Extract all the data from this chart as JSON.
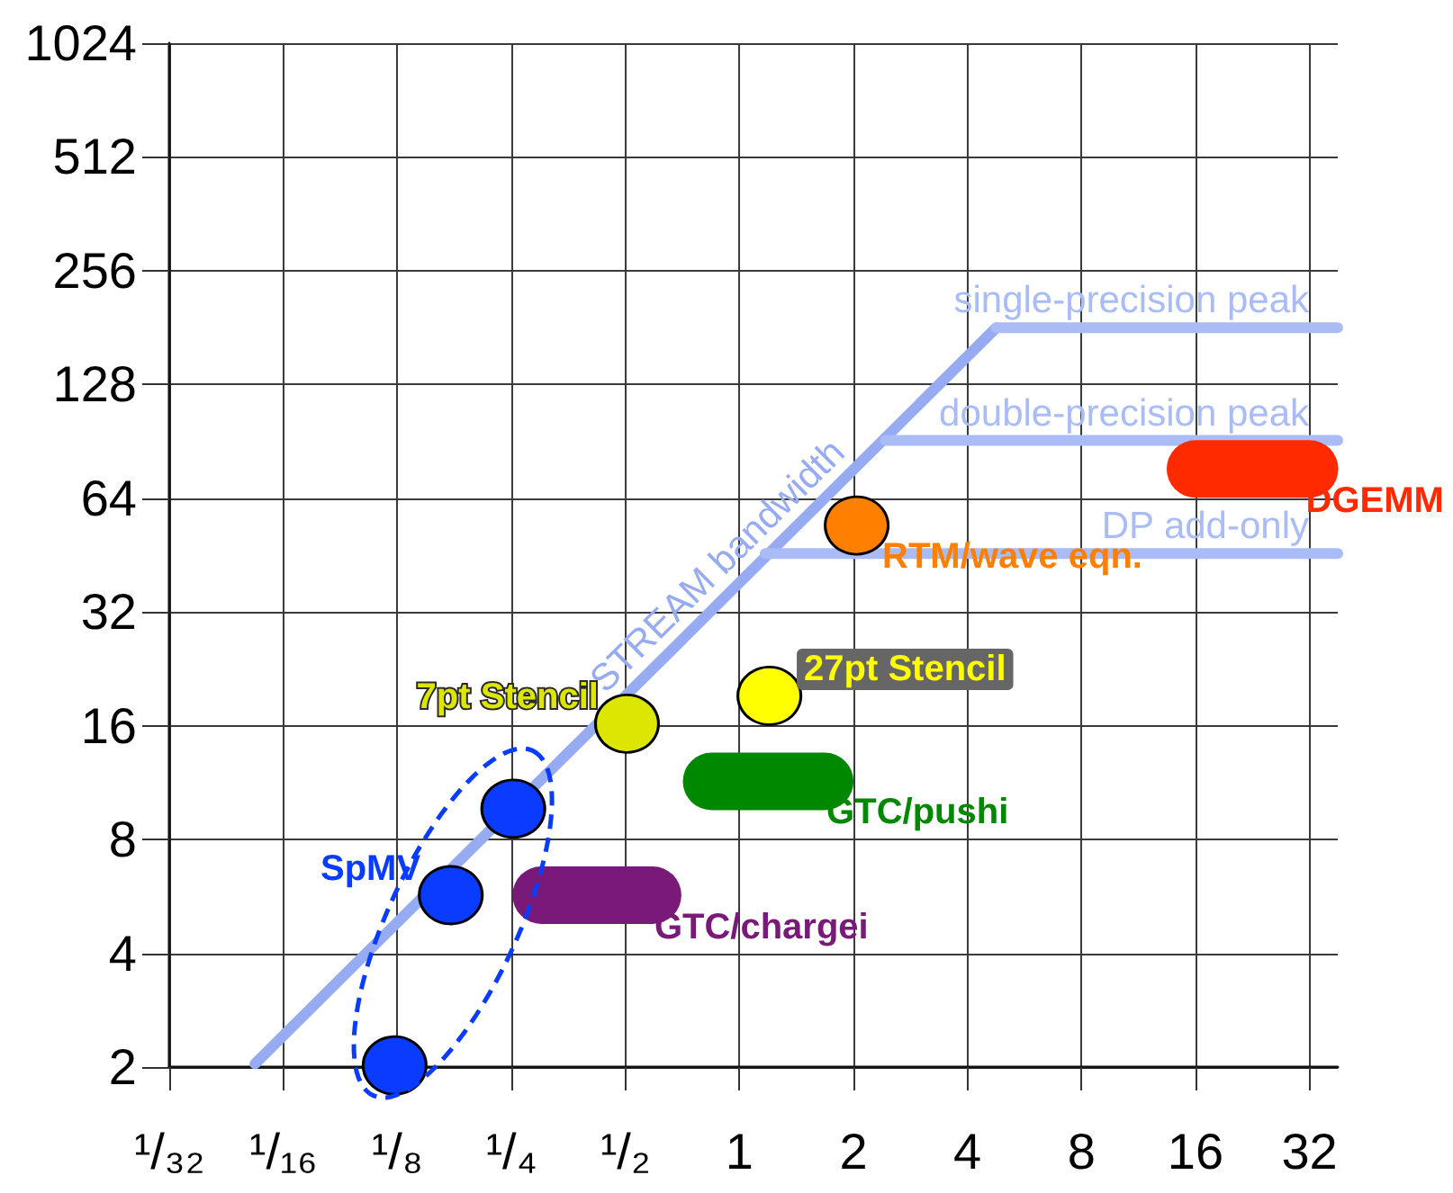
{
  "chart_data": {
    "type": "scatter",
    "log": "xy",
    "grid": true,
    "legend": false,
    "marker": "circle",
    "xlim": [
      0.03125,
      38
    ],
    "ylim": [
      2,
      1024
    ],
    "xticks": [
      {
        "value": 0.03125,
        "label": "¹/₃₂"
      },
      {
        "value": 0.0625,
        "label": "¹/₁₆"
      },
      {
        "value": 0.125,
        "label": "¹/₈"
      },
      {
        "value": 0.25,
        "label": "¹/₄"
      },
      {
        "value": 0.5,
        "label": "¹/₂"
      },
      1,
      2,
      4,
      8,
      16,
      32
    ],
    "yticks": [
      2,
      4,
      8,
      16,
      32,
      64,
      128,
      256,
      512,
      1024
    ],
    "series": [
      {
        "name": "STREAM bandwidth",
        "type": "line",
        "marker": "none",
        "color": "#97abf2",
        "x": [
          0.0526,
          4.77
        ],
        "values": [
          2.04,
          181
        ]
      },
      {
        "name": "single-precision peak",
        "type": "line",
        "marker": "none",
        "color": "#a9bcf5",
        "x": [
          4.77,
          38
        ],
        "values": [
          181,
          181
        ]
      },
      {
        "name": "double-precision peak",
        "type": "line",
        "marker": "none",
        "color": "#a9bcf5",
        "x": [
          2.43,
          38
        ],
        "values": [
          91,
          91
        ]
      },
      {
        "name": "DP add-only",
        "type": "line",
        "marker": "none",
        "color": "#a9bcf5",
        "x": [
          1.17,
          38
        ],
        "values": [
          45.7,
          45.7
        ]
      },
      {
        "name": "SpMV",
        "color": "#0a3cff",
        "x": [
          0.123,
          0.173,
          0.253
        ],
        "values": [
          2.02,
          5.7,
          9.65
        ]
      },
      {
        "name": "7pt Stencil",
        "color": "#dce600",
        "x": [
          0.505
        ],
        "values": [
          16.2
        ]
      },
      {
        "name": "27pt Stencil",
        "color": "#ffff00",
        "x": [
          1.2
        ],
        "values": [
          19.2
        ]
      },
      {
        "name": "RTM/wave eqn.",
        "color": "#ff8000",
        "x": [
          2.04
        ],
        "values": [
          54.2
        ]
      },
      {
        "name": "GTC/chargei",
        "type": "line",
        "marker": "none",
        "color": "#7a1a78",
        "x": [
          0.3,
          0.59
        ],
        "values": [
          5.7,
          5.7
        ]
      },
      {
        "name": "GTC/pushi",
        "type": "line",
        "marker": "none",
        "color": "#008800",
        "x": [
          0.845,
          1.68
        ],
        "values": [
          11.4,
          11.4
        ]
      },
      {
        "name": "DGEMM",
        "type": "line",
        "marker": "none",
        "color": "#ff2a00",
        "x": [
          16,
          32
        ],
        "values": [
          76.5,
          76.5
        ]
      }
    ]
  }
}
